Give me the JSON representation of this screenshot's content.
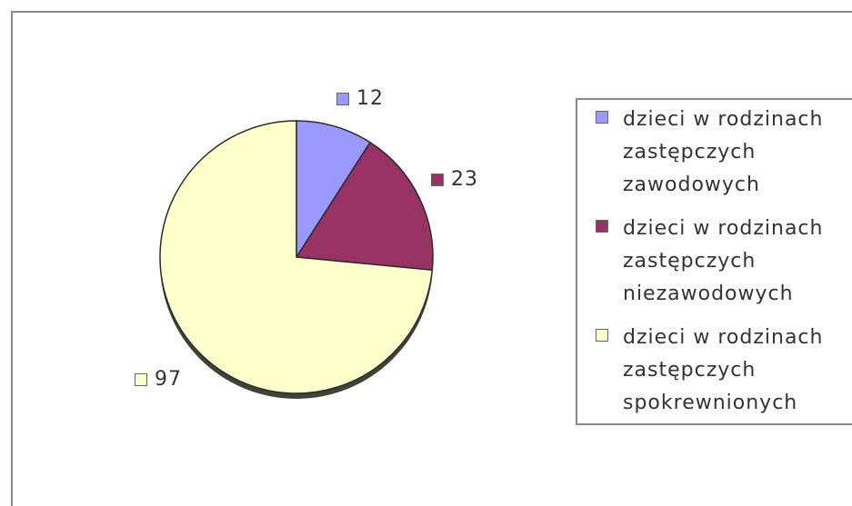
{
  "chart_data": {
    "type": "pie",
    "title": "",
    "start_angle_deg": 0,
    "slices": [
      {
        "label": "dzieci w rodzinach zastępczych zawodowych",
        "value": 12,
        "display": "12",
        "color": "#9999ff"
      },
      {
        "label": "dzieci w rodzinach zastępczych niezawodowych",
        "value": 23,
        "display": "23",
        "color": "#993366"
      },
      {
        "label": "dzieci w rodzinach zastępczych spokrewnionych",
        "value": 97,
        "display": "97",
        "color": "#ffffcc"
      }
    ],
    "legend": {
      "placement": "right",
      "items": [
        "dzieci w rodzinach\nzastępczych\nzawodowych",
        "dzieci w rodzinach\nzastępczych\nniezawodowych",
        "dzieci w rodzinach\nzastępczych\nspokrewnionych"
      ]
    }
  }
}
